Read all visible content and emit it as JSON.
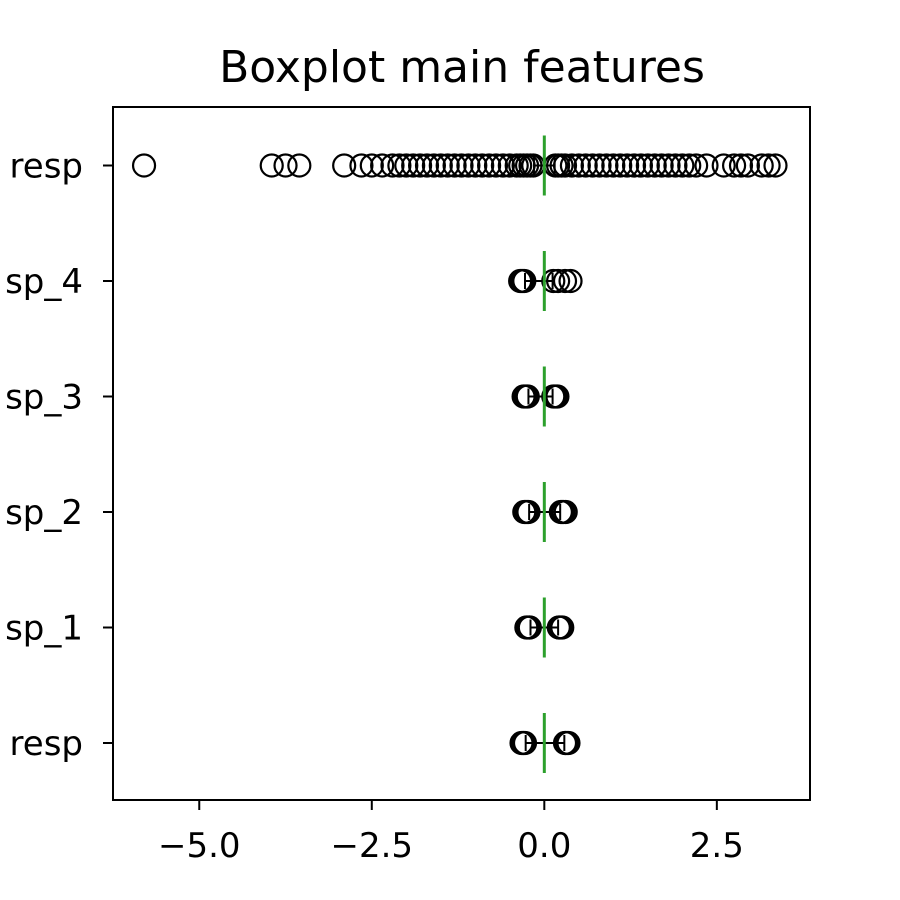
{
  "chart_data": {
    "type": "boxplot",
    "orientation": "horizontal",
    "title": "Boxplot main features",
    "xlabel": "",
    "ylabel": "",
    "xlim": [
      -6.25,
      3.85
    ],
    "x_ticks": [
      -5.0,
      -2.5,
      0.0,
      2.5
    ],
    "x_tick_labels": [
      "−5.0",
      "−2.5",
      "0.0",
      "2.5"
    ],
    "grid": false,
    "legend": "none",
    "categories": [
      "resp",
      "sp_1",
      "sp_2",
      "sp_3",
      "sp_4",
      "resp"
    ],
    "boxes": [
      {
        "label": "resp",
        "median": 0.0,
        "whisker_low": -0.27,
        "whisker_high": 0.29,
        "outliers_low": [
          -0.28,
          -0.3,
          -0.31,
          -0.33
        ],
        "outliers_high": [
          0.3,
          0.31,
          0.33,
          0.35
        ]
      },
      {
        "label": "sp_1",
        "median": 0.0,
        "whisker_low": -0.2,
        "whisker_high": 0.2,
        "outliers_low": [
          -0.21,
          -0.22,
          -0.24,
          -0.26
        ],
        "outliers_high": [
          0.21,
          0.22,
          0.24,
          0.26
        ]
      },
      {
        "label": "sp_2",
        "median": 0.0,
        "whisker_low": -0.22,
        "whisker_high": 0.23,
        "outliers_low": [
          -0.23,
          -0.25,
          -0.27,
          -0.29
        ],
        "outliers_high": [
          0.24,
          0.26,
          0.28,
          0.31
        ]
      },
      {
        "label": "sp_3",
        "median": 0.0,
        "whisker_low": -0.23,
        "whisker_high": 0.12,
        "outliers_low": [
          -0.24,
          -0.26,
          -0.28,
          -0.3
        ],
        "outliers_high": [
          0.13,
          0.15,
          0.17,
          0.19
        ]
      },
      {
        "label": "sp_4",
        "median": 0.0,
        "whisker_low": -0.28,
        "whisker_high": 0.12,
        "outliers_low": [
          -0.29,
          -0.31,
          -0.33,
          -0.35
        ],
        "outliers_high": [
          0.13,
          0.2,
          0.3,
          0.38
        ]
      },
      {
        "label": "resp",
        "median": 0.0,
        "whisker_low": -0.15,
        "whisker_high": 0.15,
        "outliers_low": [
          -0.16,
          -0.2,
          -0.25,
          -0.3,
          -0.35,
          -0.4,
          -0.5,
          -0.6,
          -0.7,
          -0.8,
          -0.9,
          -1.0,
          -1.1,
          -1.2,
          -1.3,
          -1.4,
          -1.5,
          -1.6,
          -1.7,
          -1.8,
          -1.9,
          -2.0,
          -2.1,
          -2.2,
          -2.35,
          -2.5,
          -2.65,
          -2.9,
          -3.55,
          -3.75,
          -3.95,
          -5.8
        ],
        "outliers_high": [
          0.16,
          0.2,
          0.25,
          0.3,
          0.4,
          0.5,
          0.6,
          0.7,
          0.8,
          0.9,
          1.0,
          1.1,
          1.2,
          1.3,
          1.4,
          1.5,
          1.6,
          1.7,
          1.8,
          1.9,
          2.0,
          2.1,
          2.2,
          2.35,
          2.6,
          2.75,
          2.85,
          2.95,
          3.15,
          3.25,
          3.35
        ]
      }
    ],
    "colors": {
      "median": "#2ca02c",
      "box": "#000000",
      "outlier_edge": "#000000",
      "axes": "#000000"
    }
  }
}
